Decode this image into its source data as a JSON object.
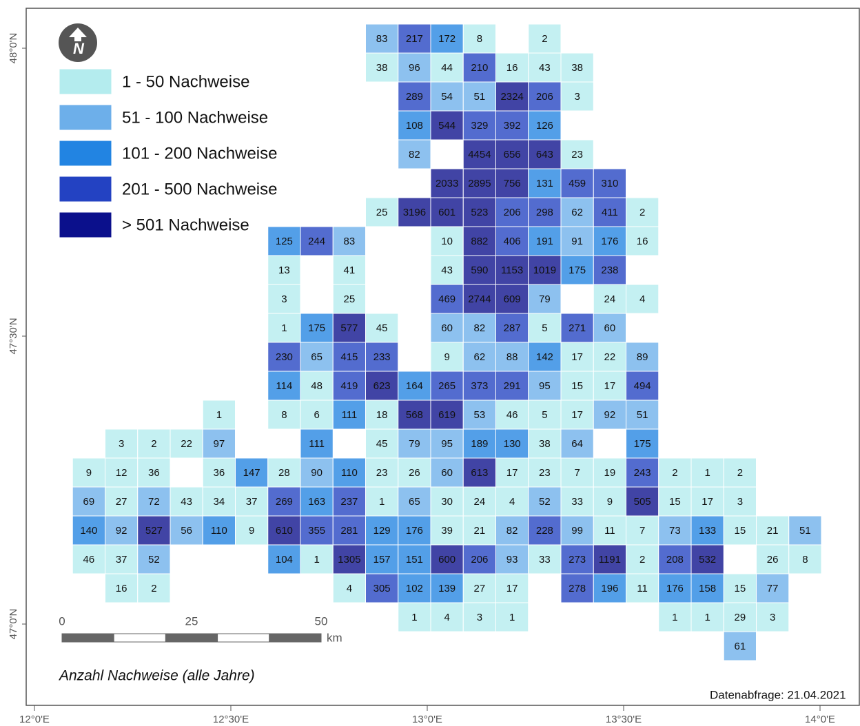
{
  "legend": {
    "items": [
      {
        "label": "1 - 50 Nachweise",
        "min": 1,
        "color": "#b4ecee"
      },
      {
        "label": "51 - 100 Nachweise",
        "min": 51,
        "color": "#6dafea"
      },
      {
        "label": "101 - 200 Nachweise",
        "min": 101,
        "color": "#2284e2"
      },
      {
        "label": "201 - 500 Nachweise",
        "min": 201,
        "color": "#2342c2"
      },
      {
        "label": "> 501 Nachweise",
        "min": 501,
        "color": "#0b108c"
      }
    ]
  },
  "north": "N",
  "caption": "Anzahl Nachweise (alle Jahre)",
  "query_date": "Datenabfrage: 21.04.2021",
  "scale": {
    "ticks": [
      0,
      25,
      50
    ],
    "unit": "km"
  },
  "lat_labels": [
    {
      "value": 48,
      "label": "48°0'N"
    },
    {
      "value": 47.5,
      "label": "47°30'N"
    },
    {
      "value": 47,
      "label": "47°0'N"
    }
  ],
  "lon_labels": [
    {
      "value": 12,
      "label": "12°0'E"
    },
    {
      "value": 12.5,
      "label": "12°30'E"
    },
    {
      "value": 13,
      "label": "13°0'E"
    },
    {
      "value": 13.5,
      "label": "13°30'E"
    },
    {
      "value": 14,
      "label": "14°0'E"
    }
  ],
  "grid": {
    "rows": [
      [
        null,
        null,
        null,
        null,
        null,
        null,
        null,
        null,
        null,
        null,
        83,
        217,
        172,
        8,
        null,
        2,
        null,
        null,
        null,
        null,
        null,
        null,
        null,
        null
      ],
      [
        null,
        null,
        null,
        null,
        null,
        null,
        null,
        null,
        null,
        null,
        38,
        96,
        44,
        210,
        16,
        43,
        38,
        null,
        null,
        null,
        null,
        null,
        null,
        null
      ],
      [
        null,
        null,
        null,
        null,
        null,
        null,
        null,
        null,
        null,
        null,
        null,
        289,
        54,
        51,
        2324,
        206,
        3,
        null,
        null,
        null,
        null,
        null,
        null,
        null
      ],
      [
        null,
        null,
        null,
        null,
        null,
        null,
        null,
        null,
        null,
        null,
        null,
        108,
        544,
        329,
        392,
        126,
        null,
        null,
        null,
        null,
        null,
        null,
        null,
        null
      ],
      [
        null,
        null,
        null,
        null,
        null,
        null,
        null,
        null,
        null,
        null,
        null,
        82,
        null,
        4454,
        656,
        643,
        23,
        null,
        null,
        null,
        null,
        null,
        null,
        null
      ],
      [
        null,
        null,
        null,
        null,
        null,
        null,
        null,
        null,
        null,
        null,
        null,
        null,
        2033,
        2895,
        756,
        131,
        459,
        310,
        null,
        null,
        null,
        null,
        null,
        null
      ],
      [
        null,
        null,
        null,
        null,
        null,
        null,
        null,
        null,
        null,
        null,
        25,
        3196,
        601,
        523,
        206,
        298,
        62,
        411,
        2,
        null,
        null,
        null,
        null,
        null
      ],
      [
        null,
        null,
        null,
        null,
        null,
        null,
        null,
        125,
        244,
        83,
        null,
        null,
        10,
        882,
        406,
        191,
        91,
        176,
        16,
        null,
        null,
        null,
        null,
        null
      ],
      [
        null,
        null,
        null,
        null,
        null,
        null,
        null,
        13,
        null,
        41,
        null,
        null,
        43,
        590,
        1153,
        1019,
        175,
        238,
        null,
        null,
        null,
        null,
        null,
        null
      ],
      [
        null,
        null,
        null,
        null,
        null,
        null,
        null,
        3,
        null,
        25,
        null,
        null,
        469,
        2744,
        609,
        79,
        null,
        24,
        4,
        null,
        null,
        null,
        null,
        null
      ],
      [
        null,
        null,
        null,
        null,
        null,
        null,
        null,
        1,
        175,
        577,
        45,
        null,
        60,
        82,
        287,
        5,
        271,
        60,
        null,
        null,
        null,
        null,
        null,
        null
      ],
      [
        null,
        null,
        null,
        null,
        null,
        null,
        null,
        230,
        65,
        415,
        233,
        null,
        9,
        62,
        88,
        142,
        17,
        22,
        89,
        null,
        null,
        null,
        null,
        null
      ],
      [
        null,
        null,
        null,
        null,
        null,
        null,
        null,
        114,
        48,
        419,
        623,
        164,
        265,
        373,
        291,
        95,
        15,
        17,
        494,
        null,
        null,
        null,
        null,
        null
      ],
      [
        null,
        null,
        null,
        null,
        null,
        1,
        null,
        8,
        6,
        111,
        18,
        568,
        619,
        53,
        46,
        5,
        17,
        92,
        51,
        null,
        null,
        null,
        null,
        null
      ],
      [
        null,
        null,
        3,
        2,
        22,
        97,
        null,
        null,
        111,
        null,
        45,
        79,
        95,
        189,
        130,
        38,
        64,
        null,
        175,
        null,
        null,
        null,
        null,
        null
      ],
      [
        null,
        9,
        12,
        36,
        null,
        36,
        147,
        28,
        90,
        110,
        23,
        26,
        60,
        613,
        17,
        23,
        7,
        19,
        243,
        2,
        1,
        2,
        null,
        null
      ],
      [
        null,
        69,
        27,
        72,
        43,
        34,
        37,
        269,
        163,
        237,
        1,
        65,
        30,
        24,
        4,
        52,
        33,
        9,
        505,
        15,
        17,
        3,
        null,
        null
      ],
      [
        null,
        140,
        92,
        527,
        56,
        110,
        9,
        610,
        355,
        281,
        129,
        176,
        39,
        21,
        82,
        228,
        99,
        11,
        7,
        73,
        133,
        15,
        21,
        51
      ],
      [
        null,
        46,
        37,
        52,
        null,
        null,
        null,
        104,
        1,
        1305,
        157,
        151,
        600,
        206,
        93,
        33,
        273,
        1191,
        2,
        208,
        532,
        null,
        26,
        8
      ],
      [
        null,
        null,
        16,
        2,
        null,
        null,
        null,
        null,
        null,
        4,
        305,
        102,
        139,
        27,
        17,
        null,
        278,
        196,
        11,
        176,
        158,
        15,
        77,
        null
      ],
      [
        null,
        null,
        null,
        null,
        null,
        null,
        null,
        null,
        null,
        null,
        null,
        1,
        4,
        3,
        1,
        null,
        null,
        null,
        null,
        1,
        1,
        29,
        3,
        null
      ],
      [
        null,
        null,
        null,
        null,
        null,
        null,
        null,
        null,
        null,
        null,
        null,
        null,
        null,
        null,
        null,
        null,
        null,
        null,
        null,
        null,
        null,
        61,
        null,
        null
      ]
    ]
  }
}
